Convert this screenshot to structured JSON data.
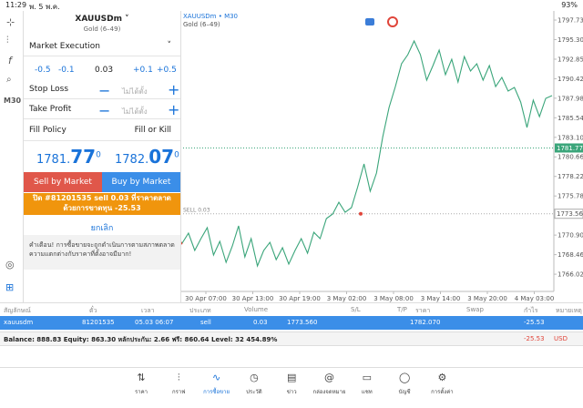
{
  "status": {
    "time": "11:29",
    "date": "พ. 5 พ.ค.",
    "battery": "93%"
  },
  "side_label": "M30",
  "order": {
    "symbol": "XAUUSDm",
    "symbol_desc": "Gold (6–49)",
    "execution": "Market Execution",
    "volume": [
      "-0.5",
      "-0.1",
      "0.03",
      "+0.1",
      "+0.5"
    ],
    "stop_loss": "Stop Loss",
    "take_profit": "Take Profit",
    "not_set": "ไม่ได้ตั้ง",
    "fill_policy": "Fill Policy",
    "fill_value": "Fill or Kill",
    "bid": {
      "main": "1781.",
      "big": "77",
      "sup": "0"
    },
    "ask": {
      "main": "1782.",
      "big": "07",
      "sup": "0"
    },
    "sell_button": "Sell by Market",
    "buy_button": "Buy by Market",
    "close_notice": "ปิด #81201535 sell 0.03 ที่ราคาตลาดด้วยการขาดทุน -25.53",
    "cancel": "ยกเลิก",
    "warning": "คำเตือน! การซื้อขายจะถูกดำเนินการตามสภาพตลาด ความแตกต่างกับราคาที่ตั้งอาจมีมาก!"
  },
  "chart": {
    "title": "XAUUSDm • M30",
    "subtitle": "Gold (6–49)",
    "ylim": [
      1763.87,
      1798.87
    ],
    "yticks": [
      {
        "value": 1797.73,
        "label": "1797.730"
      },
      {
        "value": 1795.3,
        "label": "1795.300"
      },
      {
        "value": 1792.85,
        "label": "1792.850"
      },
      {
        "value": 1790.42,
        "label": "1790.420"
      },
      {
        "value": 1787.98,
        "label": "1787.980"
      },
      {
        "value": 1785.54,
        "label": "1785.540"
      },
      {
        "value": 1783.1,
        "label": "1783.100"
      },
      {
        "value": 1780.66,
        "label": "1780.660"
      },
      {
        "value": 1778.22,
        "label": "1778.220"
      },
      {
        "value": 1775.78,
        "label": "1775.780"
      },
      {
        "value": 1770.9,
        "label": "1770.900"
      },
      {
        "value": 1768.46,
        "label": "1768.460"
      },
      {
        "value": 1766.02,
        "label": "1766.020"
      }
    ],
    "bid_line": {
      "value": 1781.77,
      "label": "1781.770"
    },
    "sell_line": {
      "value": 1773.56,
      "label": "1773.560",
      "text": "SELL 0.03"
    },
    "xlabels": [
      "30 Apr 07:00",
      "30 Apr 13:00",
      "30 Apr 19:00",
      "3 May 02:00",
      "3 May 08:00",
      "3 May 14:00",
      "3 May 20:00",
      "4 May 03:00"
    ],
    "color": "#3aa57a",
    "values": [
      1769.89,
      1771.14,
      1768.98,
      1770.46,
      1771.82,
      1768.41,
      1770.12,
      1767.5,
      1769.55,
      1772.05,
      1768.18,
      1770.46,
      1767.05,
      1768.98,
      1770.0,
      1767.84,
      1769.32,
      1767.28,
      1768.98,
      1770.46,
      1768.64,
      1771.25,
      1770.46,
      1772.96,
      1773.53,
      1775.0,
      1773.75,
      1774.32,
      1776.93,
      1779.78,
      1776.37,
      1778.64,
      1783.18,
      1786.82,
      1789.43,
      1792.28,
      1793.41,
      1795.12,
      1793.41,
      1790.23,
      1792.05,
      1793.98,
      1790.91,
      1792.84,
      1790.0,
      1793.18,
      1791.37,
      1792.28,
      1790.23,
      1792.05,
      1789.43,
      1790.57,
      1788.87,
      1789.32,
      1787.5,
      1784.32,
      1787.73,
      1785.68,
      1787.96,
      1788.3
    ]
  },
  "table": {
    "headers": [
      "สัญลักษณ์",
      "ตั๋ว",
      "เวลา",
      "ประเภท",
      "Volume",
      "S/L",
      "T/P",
      "ราคา",
      "Swap",
      "กำไร",
      "หมายเหตุ"
    ],
    "row": [
      "xauusdm",
      "81201535",
      "05.03 06:07",
      "sell",
      "0.03",
      "1773.560",
      "1782.070",
      "-25.53"
    ],
    "balance": "Balance: 888.83 Equity: 863.30 หลักประกัน: 2.66 ฟรี: 860.64 Level: 32 454.89%",
    "total": "-25.53",
    "currency": "USD"
  },
  "tabs": [
    "ราคา",
    "กราฟ",
    "การซื้อขาย",
    "ประวัติ",
    "ข่าว",
    "กล่องจดหมาย",
    "แชท",
    "บัญชี",
    "การตั้งค่า"
  ]
}
